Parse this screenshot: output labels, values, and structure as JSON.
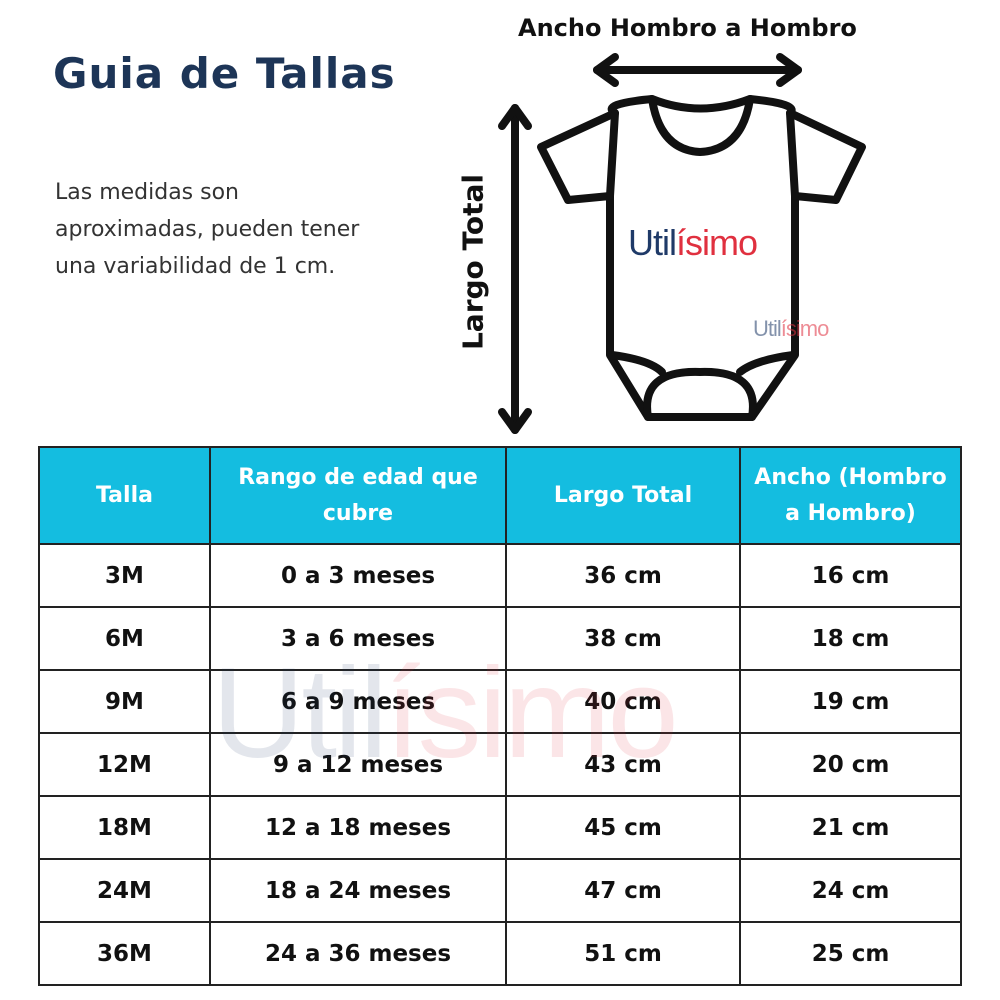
{
  "title": "Guia de Tallas",
  "description": "Las medidas son aproximadas, pueden tener una variabilidad de 1 cm.",
  "diagram": {
    "width_label": "Ancho Hombro a Hombro",
    "length_label": "Largo Total",
    "logo": {
      "part1": "Util",
      "part2": "ísimo"
    },
    "brand_colors": {
      "navy": "#1f3a68",
      "red": "#e0303f",
      "header": "#14bde0"
    }
  },
  "table": {
    "headers": [
      "Talla",
      "Rango de edad que cubre",
      "Largo Total",
      "Ancho (Hombro a Hombro)"
    ],
    "rows": [
      [
        "3M",
        "0 a 3 meses",
        "36 cm",
        "16 cm"
      ],
      [
        "6M",
        "3 a 6 meses",
        "38 cm",
        "18 cm"
      ],
      [
        "9M",
        "6 a 9 meses",
        "40 cm",
        "19 cm"
      ],
      [
        "12M",
        "9 a 12 meses",
        "43 cm",
        "20 cm"
      ],
      [
        "18M",
        "12 a 18 meses",
        "45 cm",
        "21 cm"
      ],
      [
        "24M",
        "18 a 24 meses",
        "47 cm",
        "24 cm"
      ],
      [
        "36M",
        "24 a 36 meses",
        "51 cm",
        "25 cm"
      ]
    ]
  }
}
